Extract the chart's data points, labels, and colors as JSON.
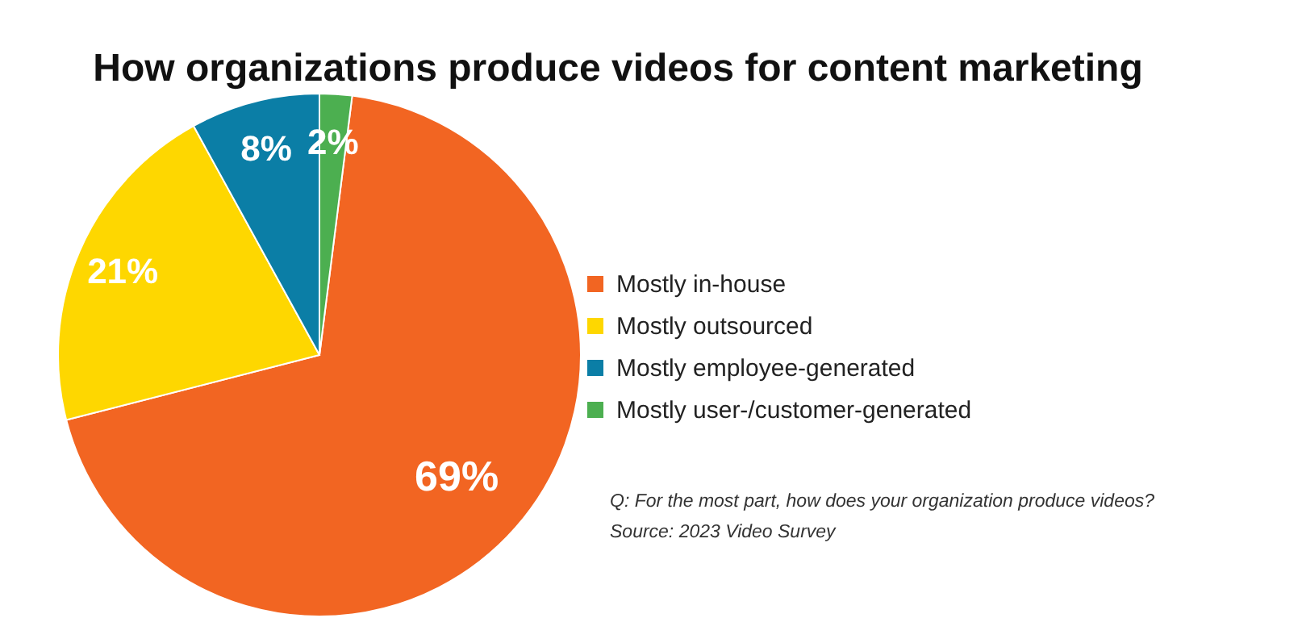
{
  "chart_data": {
    "type": "pie",
    "title": "How organizations produce videos for content marketing",
    "categories": [
      "Mostly in-house",
      "Mostly outsourced",
      "Mostly employee-generated",
      "Mostly user-/customer-generated"
    ],
    "values": [
      69,
      21,
      8,
      2
    ],
    "colors": [
      "#f26522",
      "#fed700",
      "#0b7ea6",
      "#4caf50"
    ],
    "value_labels": [
      "69%",
      "21%",
      "8%",
      "2%"
    ],
    "legend": "right",
    "annotations": [
      "Q: For the most part, how does your organization produce videos?",
      "Source: 2023 Video Survey"
    ]
  }
}
